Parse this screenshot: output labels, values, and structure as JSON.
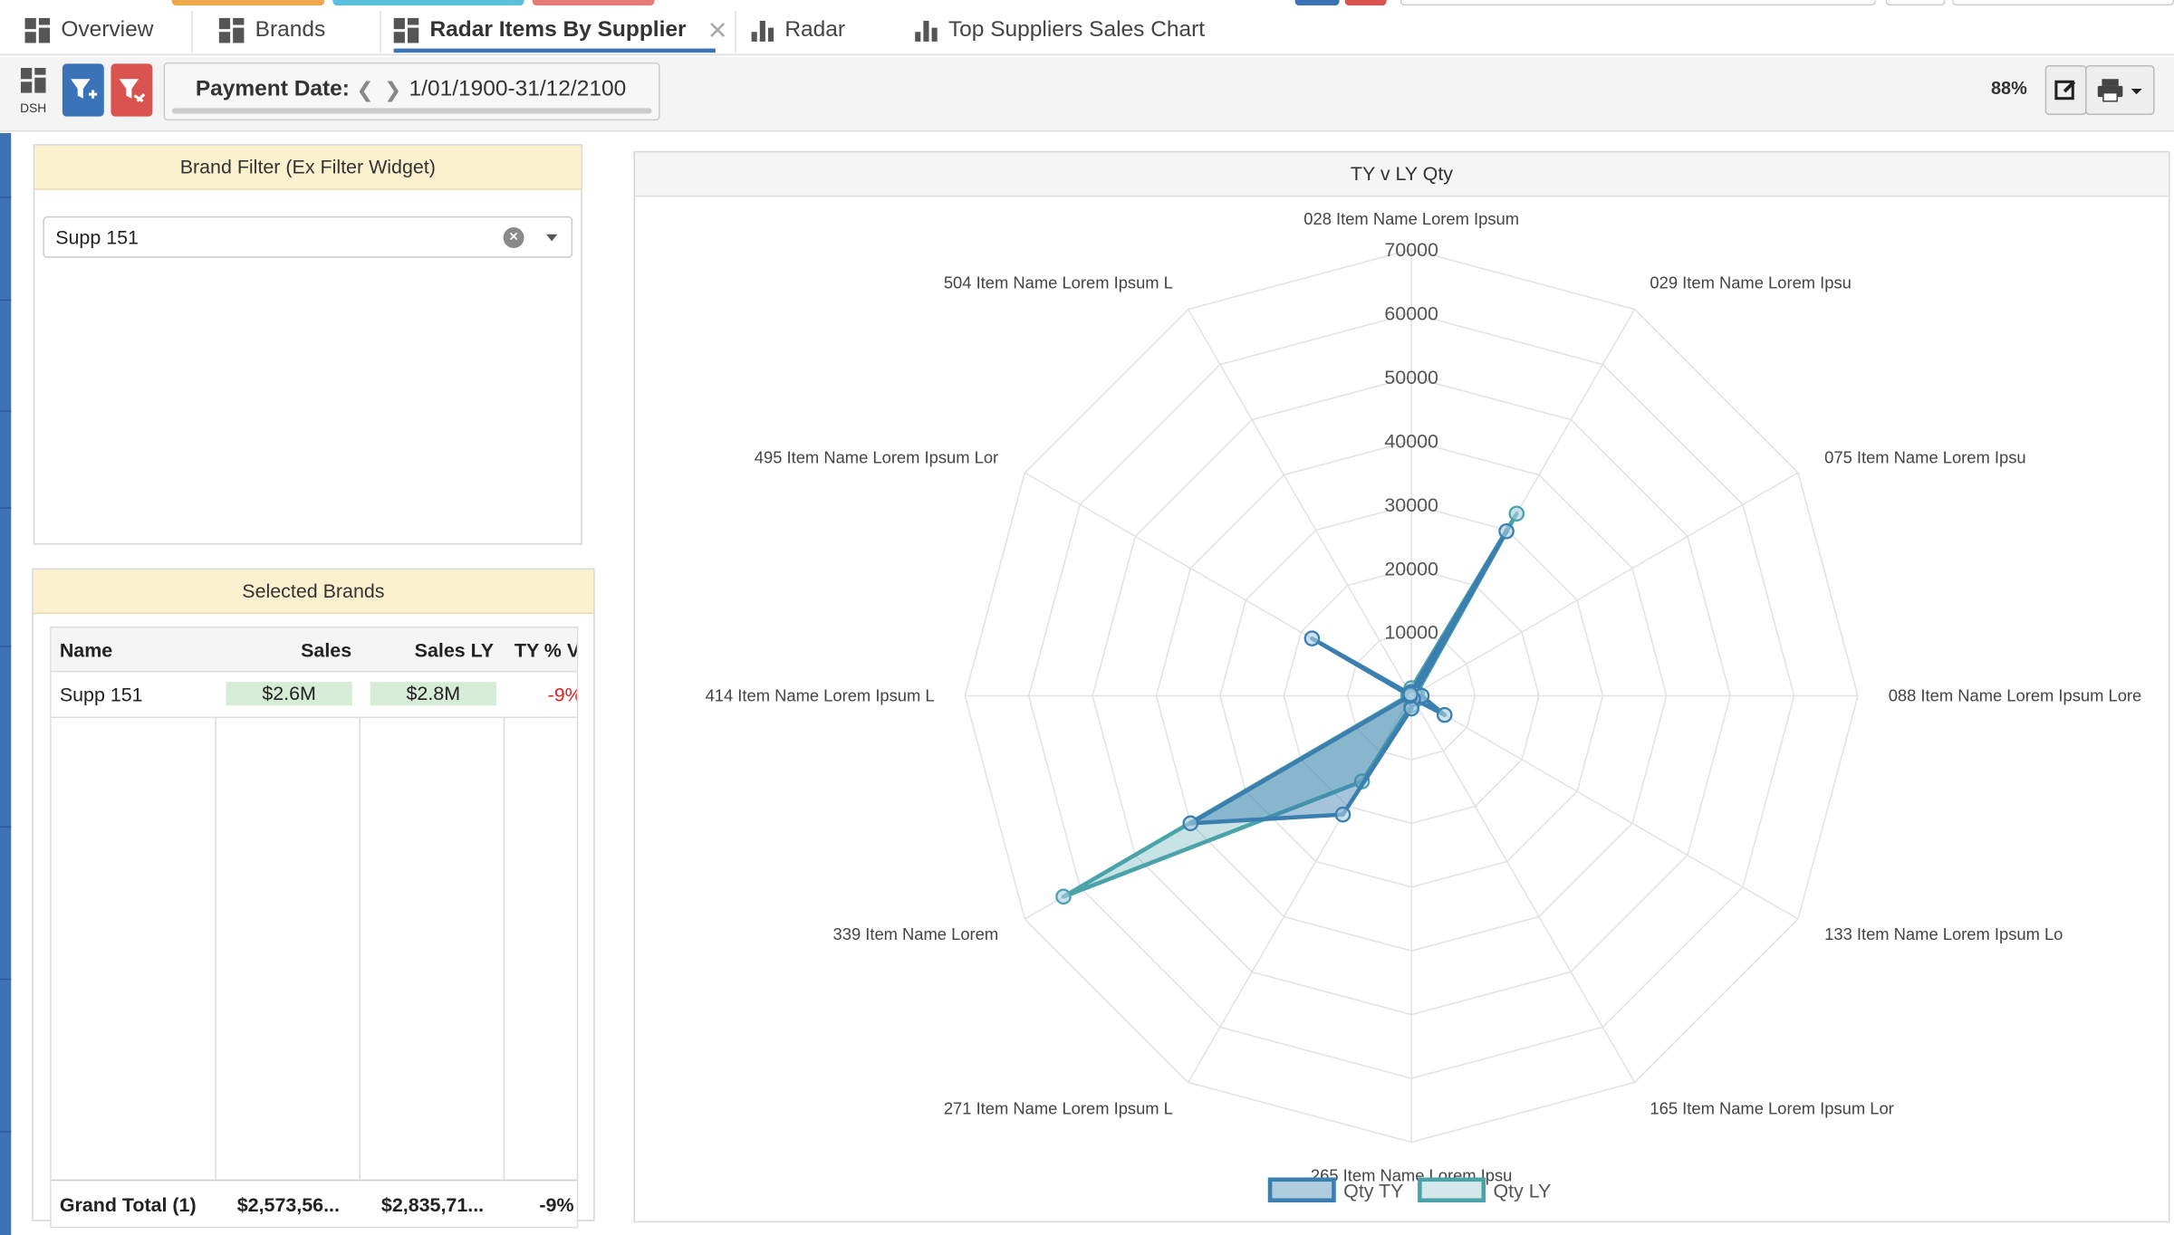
{
  "tabs": [
    {
      "label": "Overview",
      "icon": "dashboard-icon"
    },
    {
      "label": "Brands",
      "icon": "dashboard-icon"
    },
    {
      "label": "Radar Items By Supplier",
      "icon": "dashboard-icon",
      "active": true
    },
    {
      "label": "Radar",
      "icon": "bar-chart-icon"
    },
    {
      "label": "Top Suppliers Sales Chart",
      "icon": "bar-chart-icon"
    }
  ],
  "toolbar": {
    "dsh_label": "DSH",
    "payment_label": "Payment Date:",
    "payment_value": "1/01/1900-31/12/2100",
    "zoom": "88%"
  },
  "brand_filter": {
    "title": "Brand Filter (Ex Filter Widget)",
    "selected": "Supp 151"
  },
  "selected_brands": {
    "title": "Selected Brands",
    "columns": [
      "Name",
      "Sales",
      "Sales LY",
      "TY % V"
    ],
    "rows": [
      {
        "name": "Supp 151",
        "sales": "$2.6M",
        "sales_ly": "$2.8M",
        "ty_pct": "-9%"
      }
    ],
    "total": {
      "name": "Grand Total (1)",
      "sales": "$2,573,56...",
      "sales_ly": "$2,835,71...",
      "ty_pct": "-9%"
    }
  },
  "colors": {
    "accent": "#3d73b5",
    "qty_ty": "#3a7fb0",
    "qty_ly": "#4aa3a8",
    "header_yellow": "#fcf1cf",
    "negative": "#e02020"
  },
  "chart_data": {
    "type": "radar",
    "title": "TY v LY Qty",
    "categories": [
      "028 Item Name Lorem Ipsum",
      "029 Item Name Lorem Ipsu",
      "075 Item Name Lorem Ipsu",
      "088 Item Name Lorem Ipsum Lore",
      "133 Item Name Lorem Ipsum Lo",
      "165 Item Name Lorem Ipsum Lor",
      "265 Item Name Lorem Ipsu",
      "271 Item Name Lorem Ipsum L",
      "339 Item Name Lorem",
      "414 Item Name Lorem Ipsum L",
      "495 Item Name Lorem Ipsum Lor",
      "504 Item Name Lorem Ipsum L"
    ],
    "rlim": [
      0,
      70000
    ],
    "ticks": [
      "10000",
      "20000",
      "30000",
      "40000",
      "50000",
      "60000",
      "70000"
    ],
    "series": [
      {
        "name": "Qty TY",
        "values": [
          600,
          29800,
          600,
          1600,
          6000,
          500,
          2000,
          21500,
          40000,
          200,
          18000,
          300
        ]
      },
      {
        "name": "Qty LY",
        "values": [
          1200,
          33000,
          1000,
          400,
          1000,
          200,
          1500,
          15500,
          63000,
          500,
          300,
          200
        ]
      }
    ],
    "legend": "bottom"
  }
}
